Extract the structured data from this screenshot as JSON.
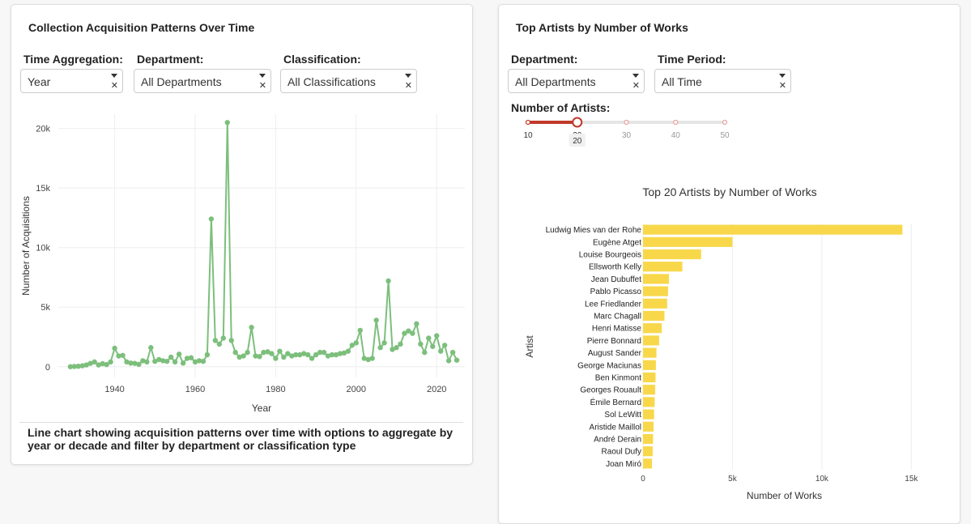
{
  "left_panel": {
    "title": "Collection Acquisition Patterns Over Time",
    "controls": {
      "aggregation": {
        "label": "Time Aggregation:",
        "value": "Year"
      },
      "department": {
        "label": "Department:",
        "value": "All Departments"
      },
      "classification": {
        "label": "Classification:",
        "value": "All Classifications"
      }
    },
    "caption": "Line chart showing acquisition patterns over time with options to aggregate by year or decade and filter by department or classification type"
  },
  "right_panel": {
    "title": "Top Artists by Number of Works",
    "controls": {
      "department": {
        "label": "Department:",
        "value": "All Departments"
      },
      "time_period": {
        "label": "Time Period:",
        "value": "All Time"
      },
      "num_artists": {
        "label": "Number of Artists:",
        "value": 20,
        "tooltip": "20",
        "marks": [
          "10",
          "20",
          "30",
          "40",
          "50"
        ],
        "min": 10,
        "max": 50
      }
    }
  },
  "icons": {
    "caret": "chevron-down-icon",
    "clear": "close-icon"
  },
  "colors": {
    "line": "#7cbf7c",
    "bar": "#f8d84a",
    "slider": "#c0392b"
  },
  "chart_data": [
    {
      "type": "line",
      "title": "",
      "xlabel": "Year",
      "ylabel": "Number of Acquisitions",
      "xlim": [
        1926,
        2027
      ],
      "ylim": [
        -900,
        21200
      ],
      "xticks": [
        1940,
        1960,
        1980,
        2000,
        2020
      ],
      "yticks": [
        0,
        5000,
        10000,
        15000,
        20000
      ],
      "ytick_labels": [
        "0",
        "5k",
        "10k",
        "15k",
        "20k"
      ],
      "grid": true,
      "series": [
        {
          "x": [
            1929,
            1930,
            1931,
            1932,
            1933,
            1934,
            1935,
            1936,
            1937,
            1938,
            1939,
            1940,
            1941,
            1942,
            1943,
            1944,
            1945,
            1946,
            1947,
            1948,
            1949,
            1950,
            1951,
            1952,
            1953,
            1954,
            1955,
            1956,
            1957,
            1958,
            1959,
            1960,
            1961,
            1962,
            1963,
            1964,
            1965,
            1966,
            1967,
            1968,
            1969,
            1970,
            1971,
            1972,
            1973,
            1974,
            1975,
            1976,
            1977,
            1978,
            1979,
            1980,
            1981,
            1982,
            1983,
            1984,
            1985,
            1986,
            1987,
            1988,
            1989,
            1990,
            1991,
            1992,
            1993,
            1994,
            1995,
            1996,
            1997,
            1998,
            1999,
            2000,
            2001,
            2002,
            2003,
            2004,
            2005,
            2006,
            2007,
            2008,
            2009,
            2010,
            2011,
            2012,
            2013,
            2014,
            2015,
            2016,
            2017,
            2018,
            2019,
            2020,
            2021,
            2022,
            2023,
            2024,
            2025
          ],
          "y": [
            0,
            20,
            40,
            80,
            150,
            280,
            400,
            150,
            250,
            180,
            400,
            1550,
            900,
            950,
            400,
            300,
            280,
            200,
            500,
            400,
            1600,
            450,
            600,
            500,
            450,
            800,
            400,
            1050,
            300,
            700,
            750,
            400,
            500,
            450,
            1000,
            12400,
            2200,
            1900,
            2400,
            20500,
            2200,
            1200,
            800,
            900,
            1200,
            3300,
            900,
            850,
            1200,
            1250,
            1100,
            700,
            1300,
            800,
            1100,
            900,
            1000,
            1000,
            1100,
            1000,
            700,
            1000,
            1200,
            1200,
            900,
            1000,
            1000,
            1100,
            1150,
            1300,
            1800,
            2000,
            3050,
            700,
            600,
            700,
            3900,
            1600,
            2000,
            7200,
            1450,
            1600,
            1900,
            2800,
            3000,
            2800,
            3600,
            1900,
            1200,
            2400,
            1700,
            2600,
            1300,
            1800,
            500,
            1200,
            550
          ]
        }
      ]
    },
    {
      "type": "bar",
      "orientation": "horizontal",
      "title": "Top 20 Artists by Number of Works",
      "xlabel": "Number of Works",
      "ylabel": "Artist",
      "xlim": [
        0,
        15800
      ],
      "xticks": [
        0,
        5000,
        10000,
        15000
      ],
      "xtick_labels": [
        "0",
        "5k",
        "10k",
        "15k"
      ],
      "grid": true,
      "categories": [
        "Ludwig Mies van der Rohe",
        "Eugène Atget",
        "Louise Bourgeois",
        "Ellsworth Kelly",
        "Jean Dubuffet",
        "Pablo Picasso",
        "Lee Friedlander",
        "Marc Chagall",
        "Henri Matisse",
        "Pierre Bonnard",
        "August Sander",
        "George Maciunas",
        "Ben Kinmont",
        "Georges Rouault",
        "Émile Bernard",
        "Sol LeWitt",
        "Aristide Maillol",
        "André Derain",
        "Raoul Dufy",
        "Joan Miró"
      ],
      "values": [
        14500,
        5000,
        3250,
        2200,
        1450,
        1400,
        1350,
        1200,
        1050,
        900,
        750,
        720,
        700,
        680,
        650,
        620,
        590,
        560,
        540,
        500
      ]
    }
  ]
}
